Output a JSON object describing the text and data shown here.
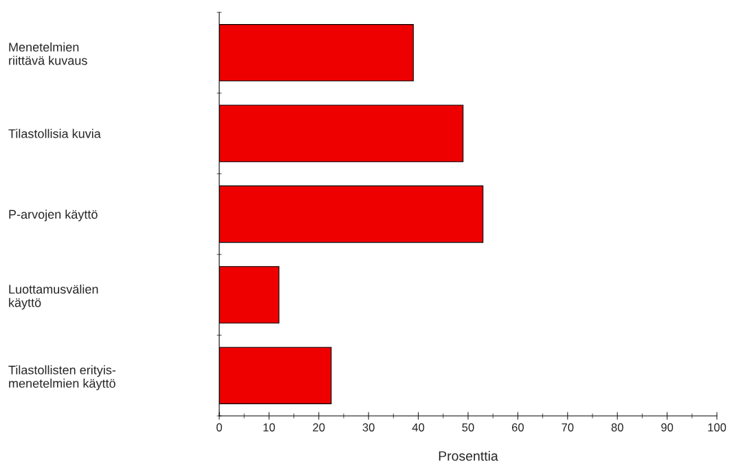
{
  "chart_data": {
    "type": "bar",
    "orientation": "horizontal",
    "xlabel": "Prosenttia",
    "categories": [
      "Menetelmien\nriittävä kuvaus",
      "Tilastollisia kuvia",
      "P-arvojen käyttö",
      "Luottamusvälien\nkäyttö",
      "Tilastollisten erityis-\nmenetelmien käyttö"
    ],
    "values": [
      39,
      49,
      53,
      12,
      22.5
    ],
    "color": "#ee0000",
    "xlim": [
      0,
      100
    ],
    "xticks": [
      0,
      10,
      20,
      30,
      40,
      50,
      60,
      70,
      80,
      90,
      100
    ],
    "grid": false,
    "legend": false
  }
}
